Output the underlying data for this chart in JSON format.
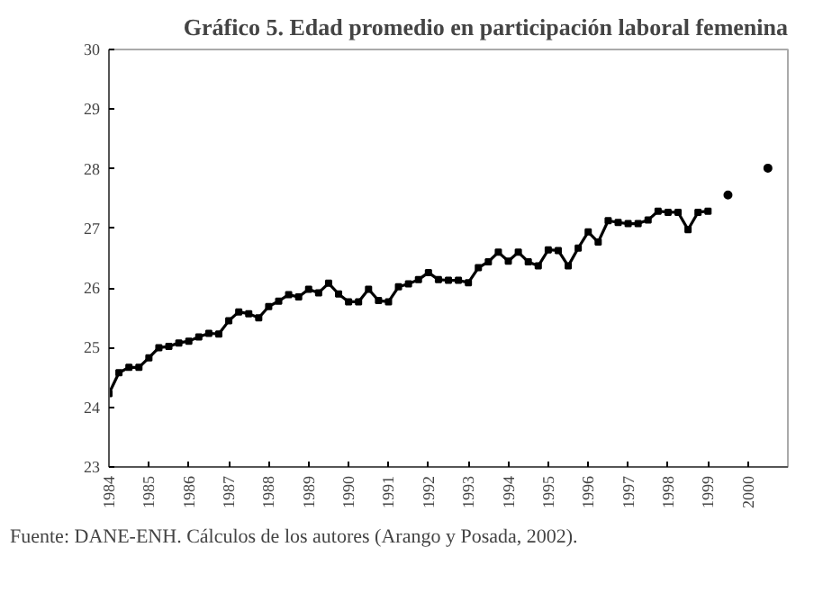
{
  "chart_data": {
    "type": "line",
    "title": "Gráfico 5. Edad promedio en participación laboral femenina",
    "series": [
      {
        "color": "#000000",
        "marker": "square",
        "x": [
          1984,
          1984.25,
          1984.5,
          1984.75,
          1985,
          1985.25,
          1985.5,
          1985.75,
          1986,
          1986.25,
          1986.5,
          1986.75,
          1987,
          1987.25,
          1987.5,
          1987.75,
          1988,
          1988.25,
          1988.5,
          1988.75,
          1989,
          1989.25,
          1989.5,
          1989.75,
          1990,
          1990.25,
          1990.5,
          1990.75,
          1991,
          1991.25,
          1991.5,
          1991.75,
          1992,
          1992.25,
          1992.5,
          1992.75,
          1993,
          1993.25,
          1993.5,
          1993.75,
          1994,
          1994.25,
          1994.5,
          1994.75,
          1995,
          1995.25,
          1995.5,
          1995.75,
          1996,
          1996.25,
          1996.5,
          1996.75,
          1997,
          1997.25,
          1997.5,
          1997.75,
          1998,
          1998.25,
          1998.5,
          1998.75,
          1999
        ],
        "values": [
          24.23,
          24.58,
          24.67,
          24.67,
          24.83,
          25.0,
          25.02,
          25.08,
          25.11,
          25.18,
          25.24,
          25.23,
          25.45,
          25.6,
          25.57,
          25.5,
          25.69,
          25.78,
          25.89,
          25.85,
          25.98,
          25.92,
          26.08,
          25.9,
          25.77,
          25.77,
          25.98,
          25.79,
          25.77,
          26.02,
          26.07,
          26.14,
          26.26,
          26.14,
          26.13,
          26.13,
          26.09,
          26.34,
          26.44,
          26.6,
          26.45,
          26.6,
          26.44,
          26.37,
          26.64,
          26.63,
          26.37,
          26.67,
          26.94,
          26.77,
          27.13,
          27.1,
          27.08,
          27.08,
          27.14,
          27.29,
          27.27,
          27.27,
          26.98,
          27.27,
          27.29
        ]
      },
      {
        "type": "scatter",
        "color": "#000000",
        "marker": "circle",
        "x": [
          1999.5,
          2000.5
        ],
        "values": [
          27.56,
          28.01
        ]
      }
    ],
    "xlim": [
      1984,
      2001
    ],
    "xticks": [
      1984,
      1985,
      1986,
      1987,
      1988,
      1989,
      1990,
      1991,
      1992,
      1993,
      1994,
      1995,
      1996,
      1997,
      1998,
      1999,
      2000
    ],
    "ylim": [
      23,
      30
    ],
    "yticks": [
      23,
      24,
      25,
      26,
      27,
      28,
      29,
      30
    ],
    "grid": false,
    "annotations": [
      "Fuente: DANE-ENH. Cálculos de los autores (Arango y Posada, 2002)."
    ]
  }
}
